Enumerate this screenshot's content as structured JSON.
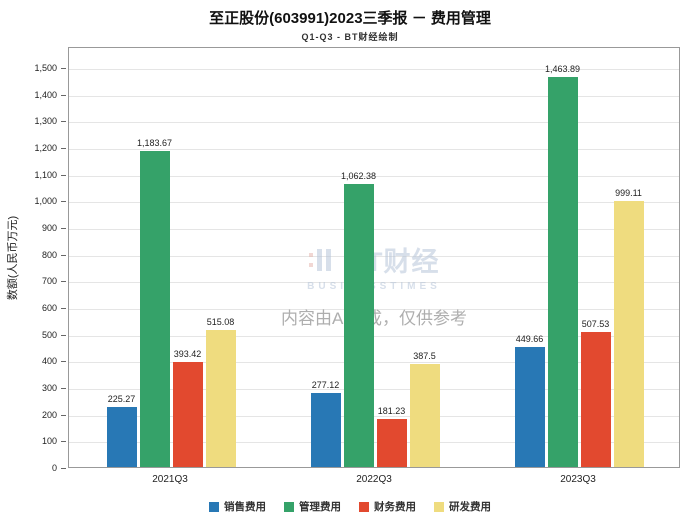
{
  "chart_data": {
    "type": "bar",
    "title": "至正股份(603991)2023三季报 － 费用管理",
    "subtitle": "Q1-Q3 - BT财经绘制",
    "xlabel": "",
    "ylabel": "数额(人民币万元)",
    "categories": [
      "2021Q3",
      "2022Q3",
      "2023Q3"
    ],
    "series": [
      {
        "name": "销售费用",
        "color": "#2878b5",
        "values": [
          225.27,
          277.12,
          449.66
        ]
      },
      {
        "name": "管理费用",
        "color": "#35a269",
        "values": [
          1183.67,
          1062.38,
          1463.89
        ]
      },
      {
        "name": "财务费用",
        "color": "#e2492f",
        "values": [
          393.42,
          181.23,
          507.53
        ]
      },
      {
        "name": "研发费用",
        "color": "#efdc7f",
        "values": [
          515.08,
          387.5,
          999.11
        ]
      }
    ],
    "ylim": [
      0,
      1500
    ],
    "ytick_step": 100,
    "grid": true,
    "legend_position": "bottom"
  },
  "watermark": {
    "brand": "BT财经",
    "brand_sub": "BUSINESSTIMES",
    "notice": "内容由AI生成，仅供参考"
  }
}
